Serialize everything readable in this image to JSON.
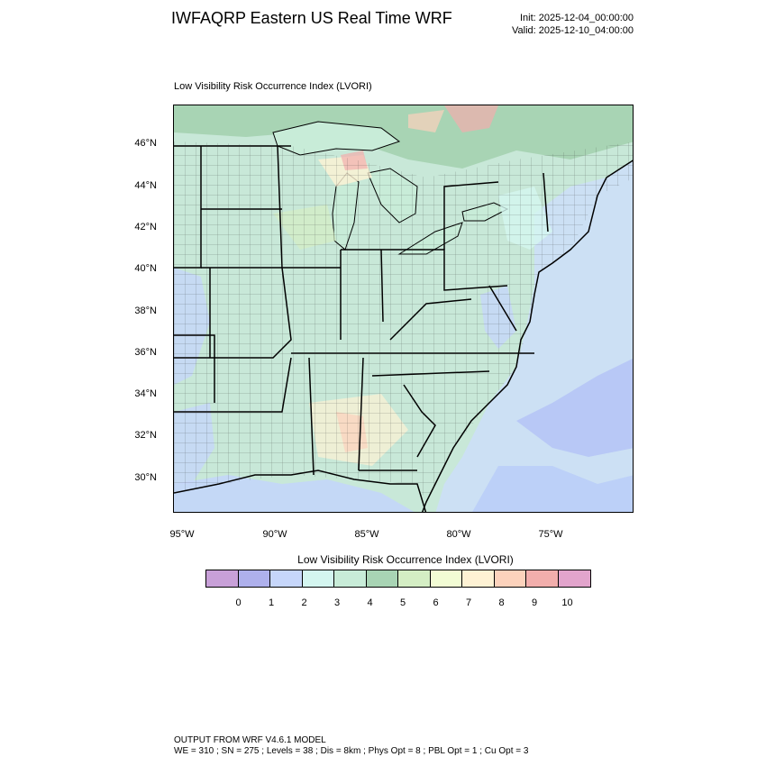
{
  "header": {
    "title": "IWFAQRP Eastern US Real Time WRF",
    "init": "Init: 2025-12-04_00:00:00",
    "valid": "Valid: 2025-12-10_04:00:00"
  },
  "map": {
    "subtitle": "Low Visibility Risk Occurrence Index   (LVORI)",
    "lat_labels": [
      "46°N",
      "44°N",
      "42°N",
      "40°N",
      "38°N",
      "36°N",
      "34°N",
      "32°N",
      "30°N"
    ],
    "lon_labels": [
      "95°W",
      "90°W",
      "85°W",
      "80°W",
      "75°W"
    ]
  },
  "colorbar": {
    "title": "Low Visibility Risk Occurrence Index  (LVORI)",
    "colors": [
      "#c8a0d8",
      "#aeb0ec",
      "#c6d6fa",
      "#d4f6f0",
      "#c8ecd8",
      "#a8d4b4",
      "#d4eec4",
      "#f2fcd4",
      "#fef2d4",
      "#fcd2bc",
      "#f2aeac",
      "#e2a4cc"
    ],
    "ticks": [
      "0",
      "1",
      "2",
      "3",
      "4",
      "5",
      "6",
      "7",
      "8",
      "9",
      "10"
    ]
  },
  "footer": {
    "line1": "OUTPUT FROM WRF V4.6.1 MODEL",
    "line2": "WE = 310 ; SN = 275 ; Levels = 38 ; Dis = 8km ; Phys Opt = 8 ; PBL Opt = 1 ; Cu Opt = 3"
  }
}
